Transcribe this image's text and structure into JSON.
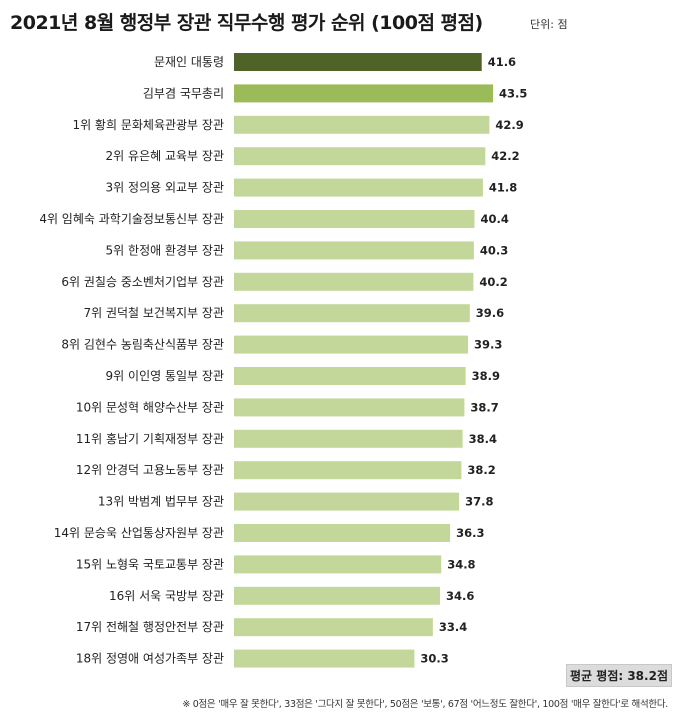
{
  "header": {
    "title": "2021년 8월 행정부 장관 직무수행 평가 순위 (100점 평점)",
    "unit": "단위: 점"
  },
  "chart_data": {
    "type": "bar",
    "orientation": "horizontal",
    "categories": [
      "문재인 대통령",
      "김부겸 국무총리",
      "1위 황희 문화체육관광부 장관",
      "2위 유은혜 교육부 장관",
      "3위 정의용 외교부 장관",
      "4위 임혜숙 과학기술정보통신부 장관",
      "5위 한정애 환경부 장관",
      "6위 권칠승 중소벤처기업부 장관",
      "7위 권덕철 보건복지부 장관",
      "8위 김현수 농림축산식품부 장관",
      "9위 이인영 통일부 장관",
      "10위 문성혁 해양수산부 장관",
      "11위 홍남기 기획재정부 장관",
      "12위 안경덕 고용노동부 장관",
      "13위 박범계 법무부 장관",
      "14위 문승욱 산업통상자원부 장관",
      "15위 노형욱 국토교통부 장관",
      "16위 서욱 국방부 장관",
      "17위 전해철 행정안전부 장관",
      "18위 정영애 여성가족부 장관"
    ],
    "values": [
      41.6,
      43.5,
      42.9,
      42.2,
      41.8,
      40.4,
      40.3,
      40.2,
      39.6,
      39.3,
      38.9,
      38.7,
      38.4,
      38.2,
      37.8,
      36.3,
      34.8,
      34.6,
      33.4,
      30.3
    ],
    "value_labels": [
      "41.6",
      "43.5",
      "42.9",
      "42.2",
      "41.8",
      "40.4",
      "40.3",
      "40.2",
      "39.6",
      "39.3",
      "38.9",
      "38.7",
      "38.4",
      "38.2",
      "37.8",
      "36.3",
      "34.8",
      "34.6",
      "33.4",
      "30.3"
    ],
    "xlim": [
      0,
      43.5
    ],
    "grid": false,
    "legend": "none",
    "colors": {
      "president": "#4f6228",
      "prime_minister": "#9bbb59",
      "minister": "#c4d79b"
    }
  },
  "average_box": "평균 평점: 38.2점",
  "footnote": "※ 0점은 '매우 잘 못한다', 33점은 '그다지 잘 못한다', 50점은 '보통', 67점 '어느정도 잘한다', 100점 '매우 잘한다'로 해석한다."
}
